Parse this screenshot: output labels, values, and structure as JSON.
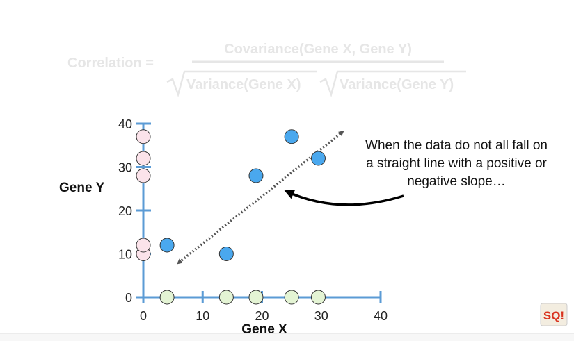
{
  "formula": {
    "lhs": "Correlation =",
    "numerator": "Covariance(Gene X, Gene Y)",
    "denominator_left": "Variance(Gene X)",
    "denominator_right": "Variance(Gene Y)"
  },
  "annotation": {
    "lines": [
      "When the data do not all fall on",
      "a straight line with a positive or",
      "negative slope…"
    ]
  },
  "chart_data": {
    "type": "scatter",
    "xlabel": "Gene X",
    "ylabel": "Gene Y",
    "xlim": [
      0,
      40
    ],
    "ylim": [
      0,
      40
    ],
    "xticks": [
      0,
      10,
      20,
      30,
      40
    ],
    "yticks": [
      0,
      10,
      20,
      30,
      40
    ],
    "grid": false,
    "colors": {
      "axis": "#5b9bd5",
      "main_points": "#4aa8ee",
      "y_projection": "#fbe3ea",
      "x_projection": "#e4f4d4",
      "trend_arrow": "#555555",
      "annotation_arrow": "#000000"
    },
    "points": [
      {
        "x": 4,
        "y": 12
      },
      {
        "x": 14,
        "y": 10
      },
      {
        "x": 19,
        "y": 28
      },
      {
        "x": 25,
        "y": 37
      },
      {
        "x": 29.5,
        "y": 32
      }
    ],
    "y_projection": {
      "x": 0,
      "values": [
        10,
        12,
        28,
        32,
        37
      ]
    },
    "x_projection": {
      "y": 0,
      "values": [
        4,
        14,
        19,
        25,
        29.5
      ]
    },
    "trend_arrow": {
      "from": [
        6,
        8
      ],
      "to": [
        33.5,
        38
      ]
    }
  },
  "logo": {
    "text": "SQ!",
    "icon": "statquest-logo-icon"
  }
}
